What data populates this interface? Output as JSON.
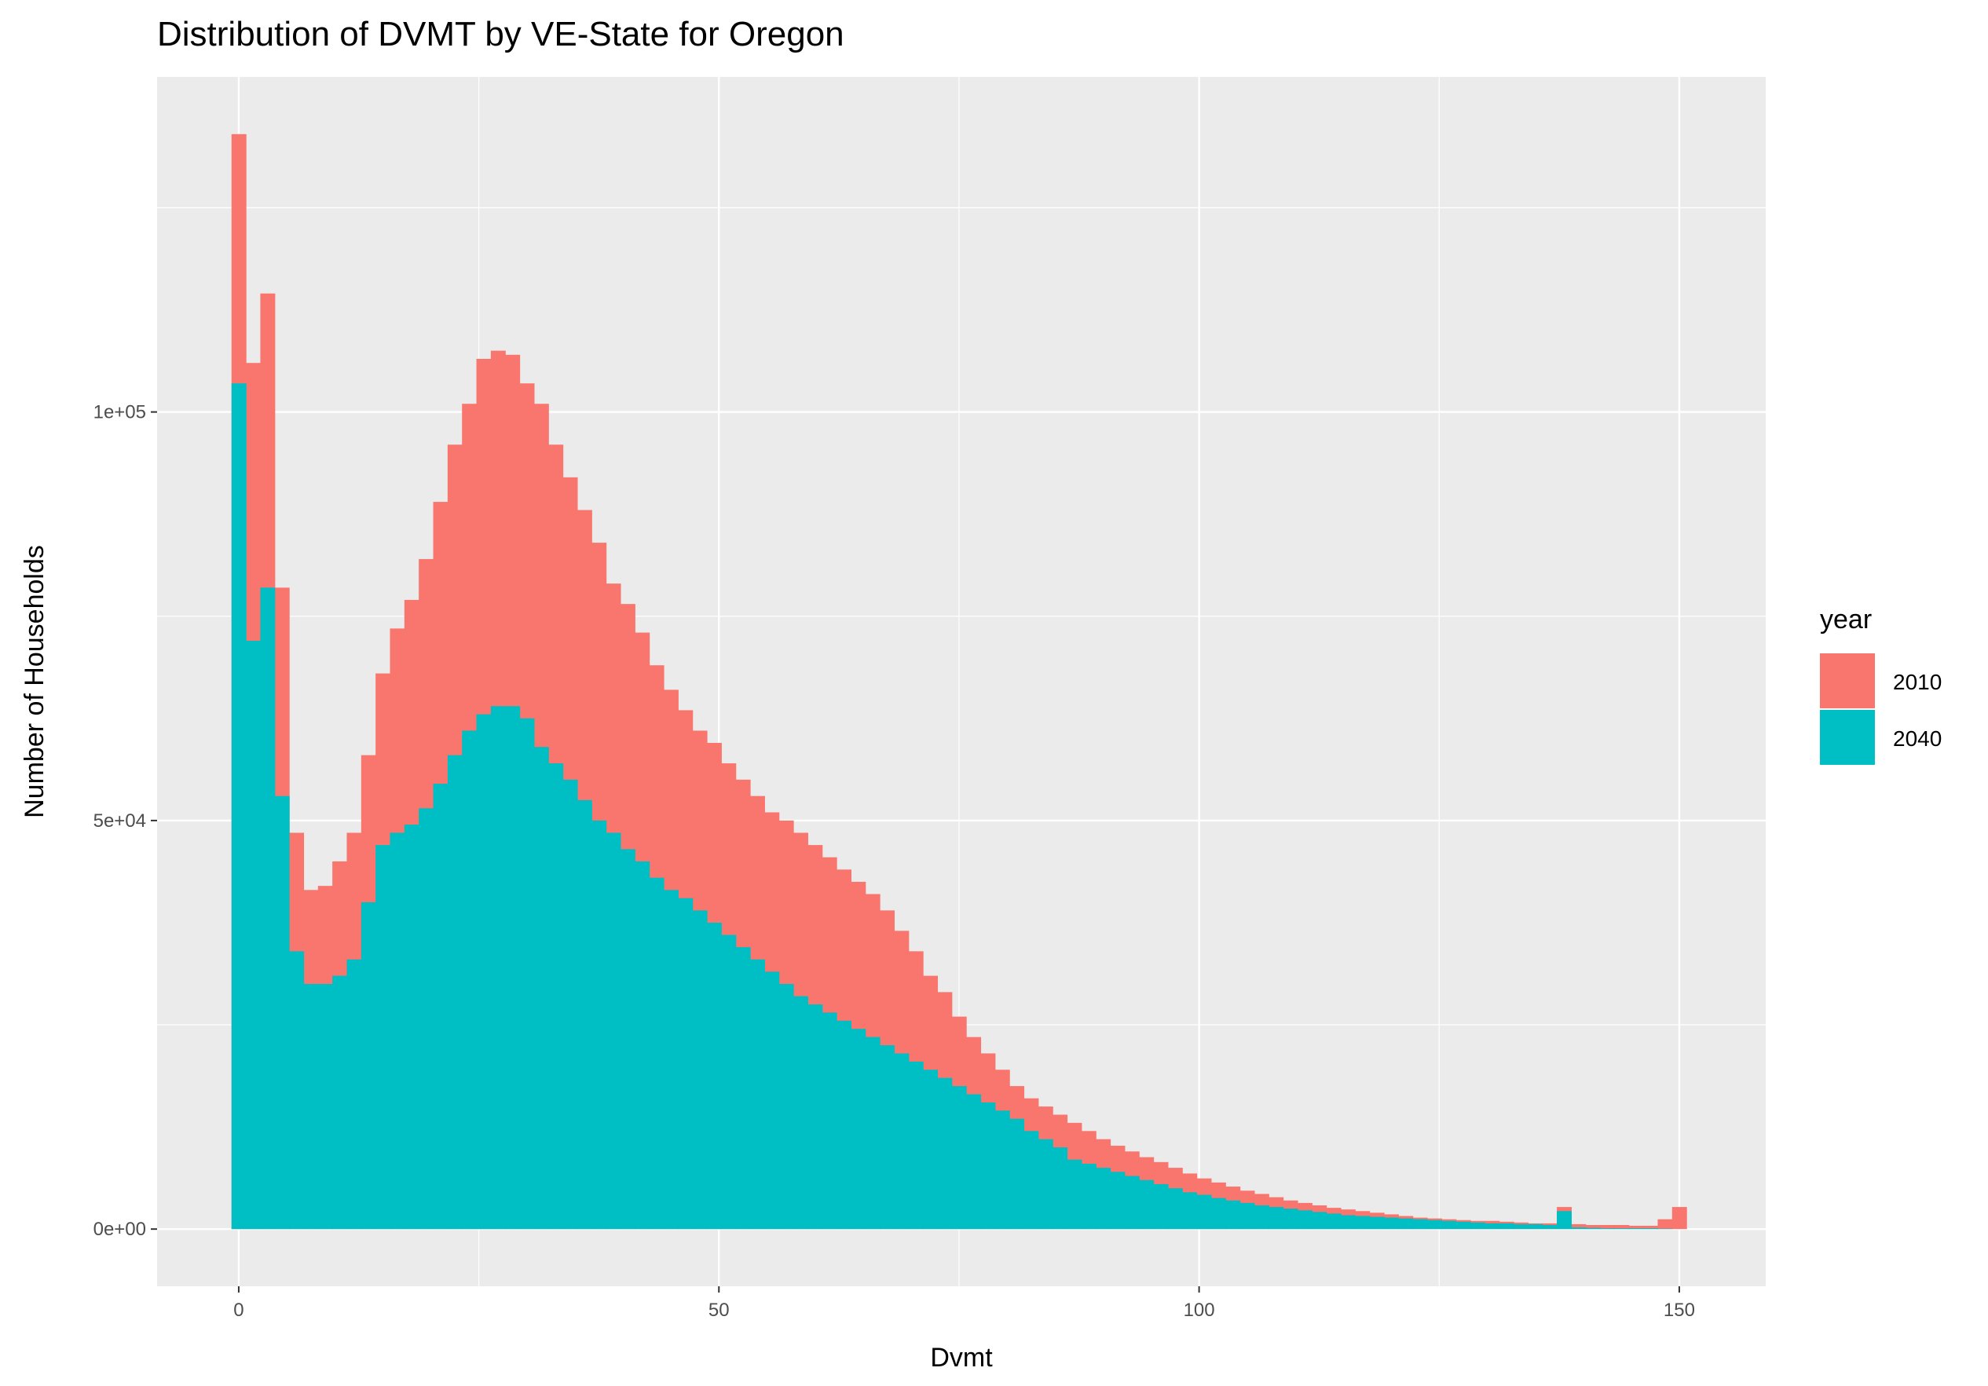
{
  "chart_data": {
    "type": "bar",
    "subtype": "histogram (overlapping)",
    "title": "Distribution of DVMT by VE-State for Oregon",
    "xlabel": "Dvmt",
    "ylabel": "Number of Households",
    "xlim": [
      -8.5,
      159
    ],
    "ylim": [
      -7000,
      141000
    ],
    "x_ticks": [
      0,
      50,
      100,
      150
    ],
    "x_tick_labels": [
      "0",
      "50",
      "100",
      "150"
    ],
    "y_ticks": [
      0,
      50000,
      100000
    ],
    "y_tick_labels": [
      "0e+00",
      "5e+04",
      "1e+05"
    ],
    "grid": true,
    "bin_width": 1.5,
    "first_bin_start": -0.75,
    "legend": {
      "title": "year",
      "position": "right"
    },
    "series": [
      {
        "name": "2010",
        "color": "#F8766D",
        "values": [
          134000,
          106000,
          114500,
          78500,
          48500,
          41500,
          42000,
          45000,
          48500,
          58000,
          68000,
          73500,
          77000,
          82000,
          89000,
          96000,
          101000,
          106500,
          107500,
          107000,
          103500,
          101000,
          96000,
          92000,
          88000,
          84000,
          79000,
          76500,
          73000,
          69000,
          66000,
          63500,
          61000,
          59500,
          57000,
          55000,
          53000,
          51000,
          50000,
          48500,
          47000,
          45500,
          44000,
          42500,
          41000,
          39000,
          36500,
          34000,
          31000,
          29000,
          26000,
          23500,
          21500,
          19500,
          17500,
          16000,
          15000,
          14000,
          13000,
          12000,
          11000,
          10200,
          9500,
          8800,
          8200,
          7500,
          6800,
          6200,
          5700,
          5200,
          4700,
          4300,
          3900,
          3500,
          3200,
          2900,
          2600,
          2400,
          2200,
          2000,
          1800,
          1600,
          1400,
          1300,
          1200,
          1100,
          1000,
          1000,
          900,
          800,
          700,
          700,
          2700,
          600,
          500,
          500,
          500,
          400,
          400,
          1200,
          2700
        ]
      },
      {
        "name": "2040",
        "color": "#00BFC4",
        "values": [
          103500,
          72000,
          78500,
          53000,
          34000,
          30000,
          30000,
          31000,
          33000,
          40000,
          47000,
          48500,
          49500,
          51500,
          54500,
          58000,
          61000,
          63000,
          64000,
          64000,
          62500,
          59000,
          57000,
          55000,
          52500,
          50000,
          48500,
          46500,
          45000,
          43000,
          41500,
          40500,
          39000,
          37500,
          36000,
          34500,
          33000,
          31500,
          30000,
          28500,
          27500,
          26500,
          25500,
          24500,
          23500,
          22500,
          21500,
          20500,
          19500,
          18500,
          17500,
          16500,
          15500,
          14500,
          13500,
          12000,
          11000,
          10000,
          8500,
          8000,
          7500,
          7000,
          6500,
          6000,
          5500,
          5000,
          4500,
          4200,
          3800,
          3500,
          3200,
          2900,
          2700,
          2500,
          2300,
          2100,
          1900,
          1700,
          1600,
          1500,
          1400,
          1300,
          1200,
          1100,
          1000,
          900,
          800,
          700,
          700,
          600,
          600,
          500,
          2200,
          200,
          150,
          100,
          100,
          100,
          100,
          50,
          0
        ]
      }
    ]
  }
}
